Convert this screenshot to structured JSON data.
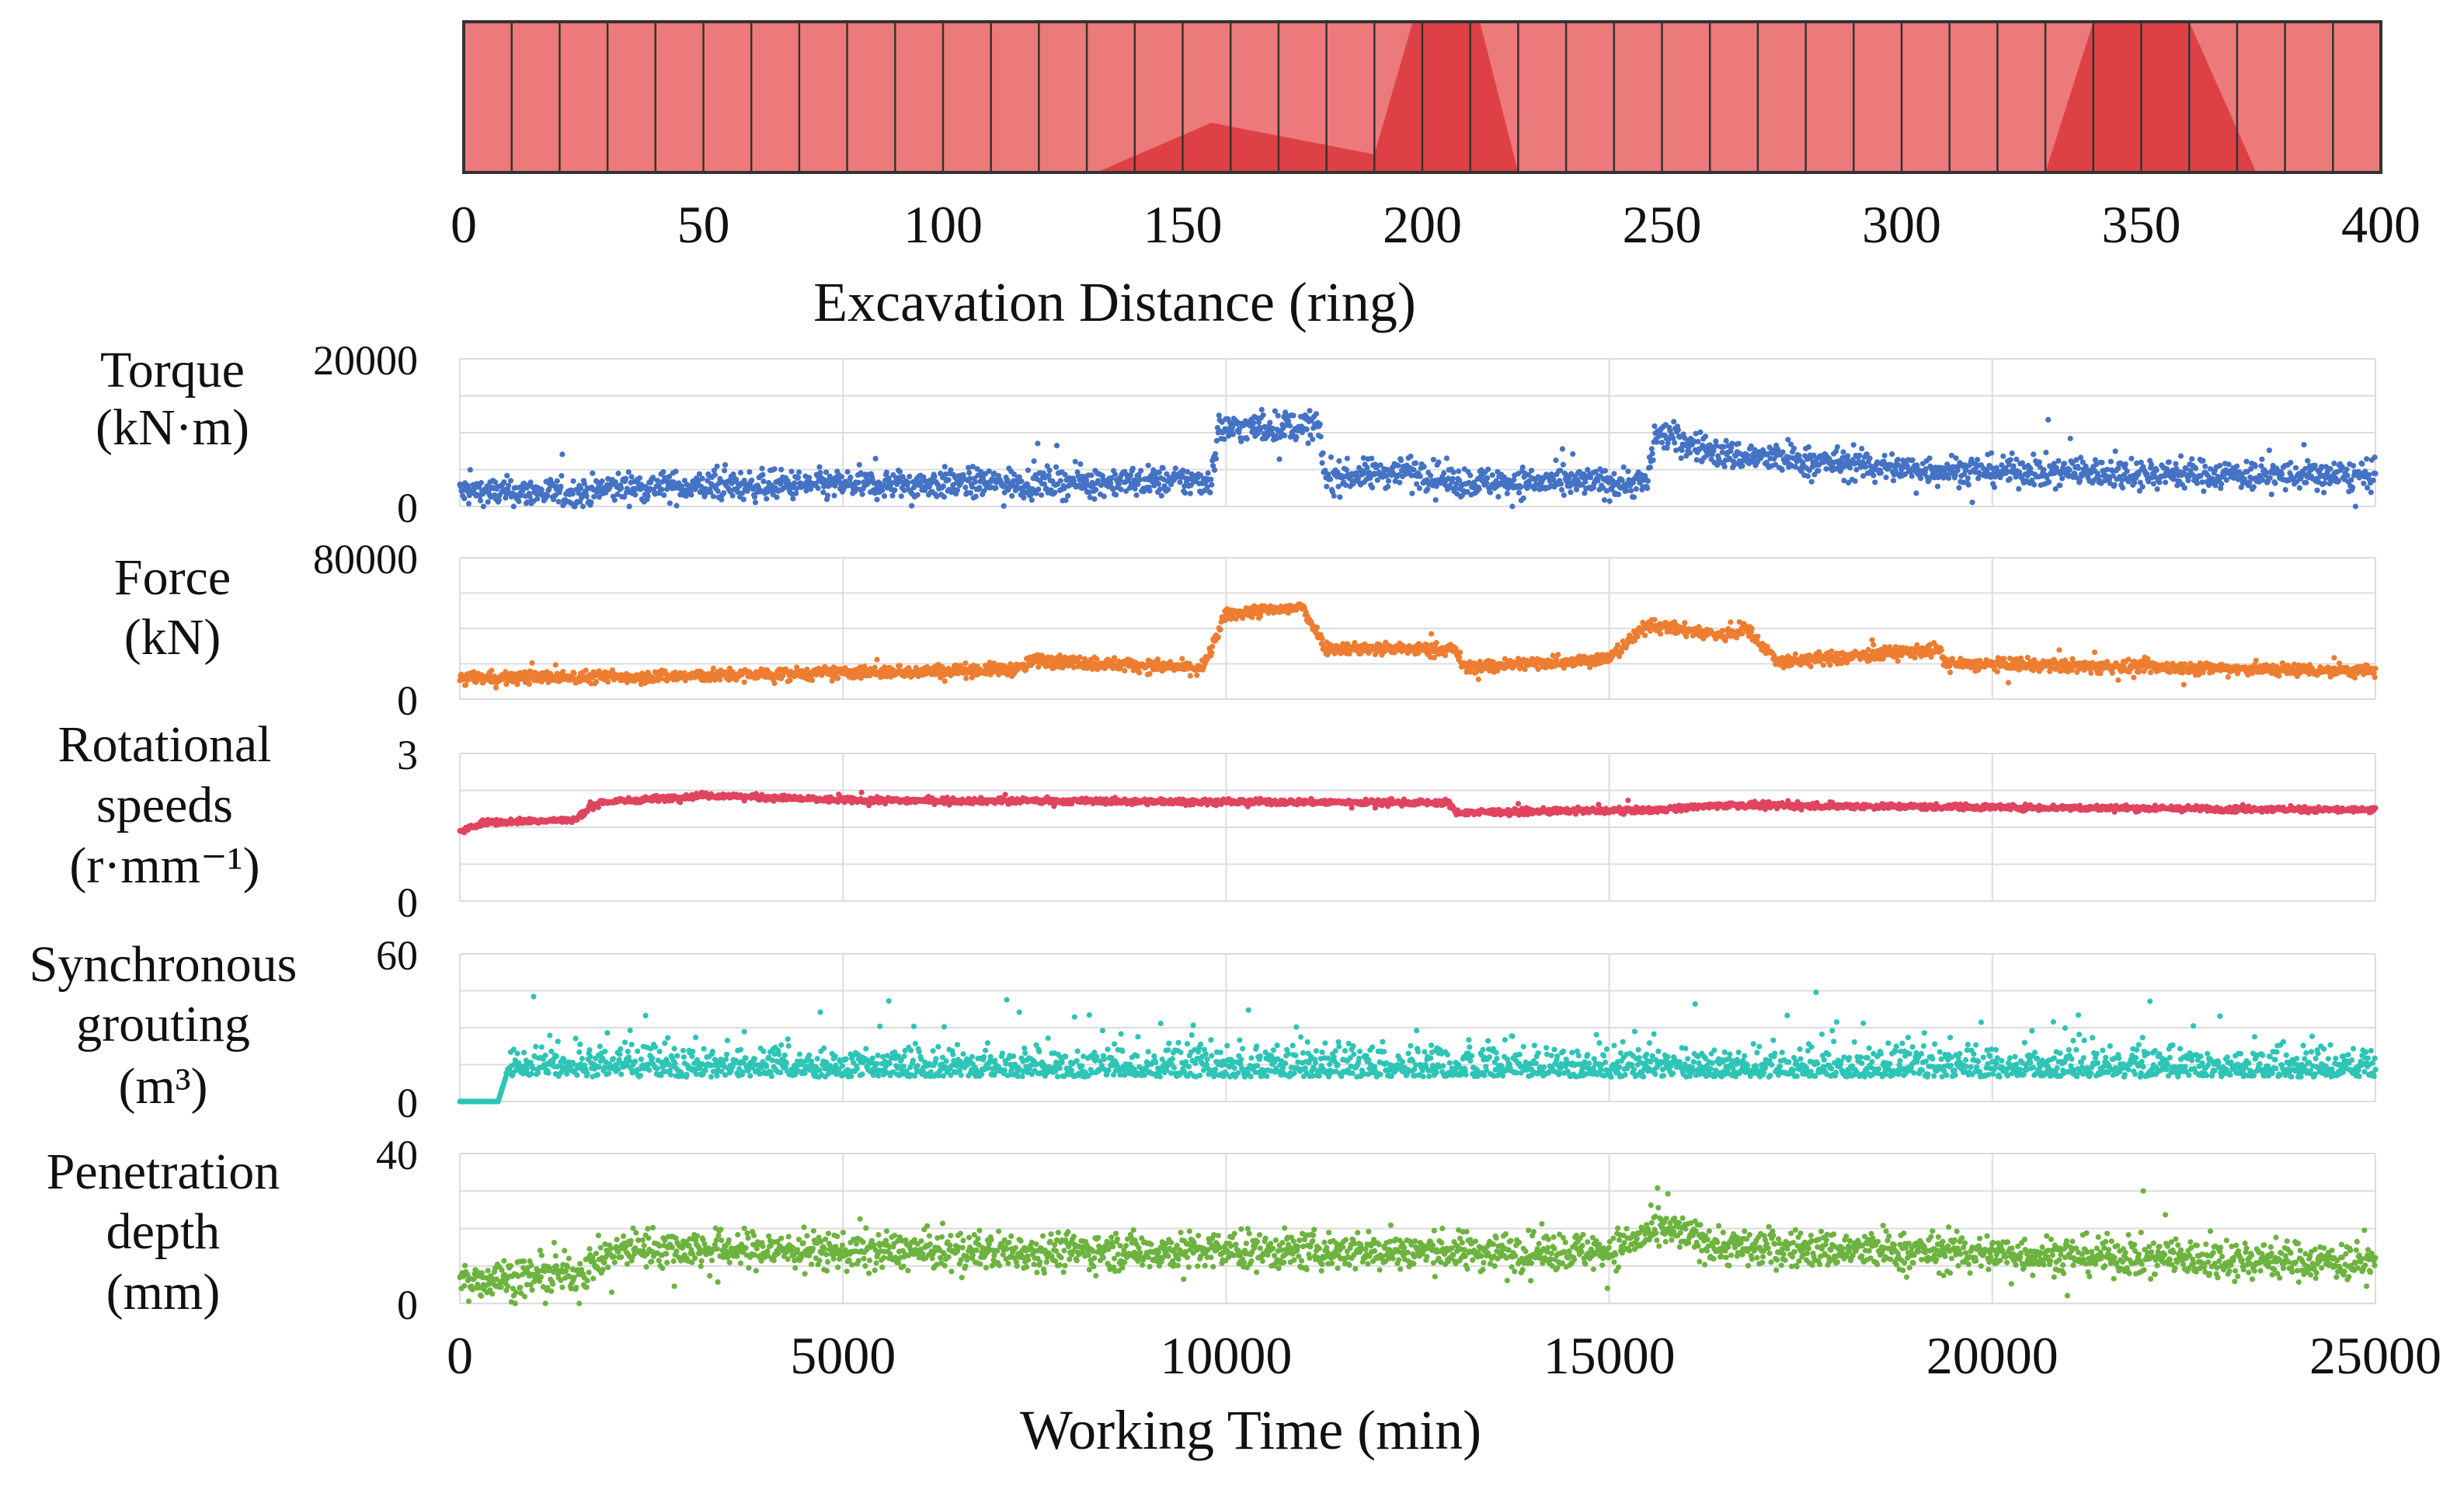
{
  "colors": {
    "strip_fill": "#ec7a7a",
    "strip_dark": "#db3b3f",
    "strip_border": "#333333",
    "grid": "#dcdcdc",
    "torque": "#4472c4",
    "force": "#ed7d31",
    "rotational": "#e0445f",
    "grouting": "#2ec4b6",
    "penetration": "#6db33f"
  },
  "strip": {
    "xlabel": "Excavation Distance (ring)",
    "ticks": [
      "0",
      "50",
      "100",
      "150",
      "200",
      "250",
      "300",
      "350",
      "400"
    ],
    "xlim": [
      0,
      400
    ],
    "segment_boundaries": [
      0,
      10,
      20,
      30,
      40,
      50,
      60,
      70,
      80,
      90,
      100,
      110,
      120,
      130,
      140,
      150,
      160,
      170,
      180,
      190,
      200,
      210,
      220,
      230,
      240,
      250,
      260,
      270,
      280,
      290,
      300,
      310,
      320,
      330,
      340,
      350,
      360,
      370,
      380,
      390,
      400
    ],
    "highlight_zones": [
      {
        "ring_points": [
          [
            132,
            0
          ],
          [
            156,
            0.33
          ],
          [
            190,
            0.12
          ],
          [
            198,
            1
          ],
          [
            212,
            1
          ],
          [
            220,
            0
          ]
        ],
        "color_key": "strip_dark"
      },
      {
        "ring_points": [
          [
            330,
            0
          ],
          [
            340,
            1
          ],
          [
            360,
            1
          ],
          [
            374,
            0
          ]
        ],
        "color_key": "strip_dark"
      }
    ]
  },
  "chart_data": {
    "type": "scatter",
    "xlabel": "Working Time (min)",
    "x_ticks": [
      "0",
      "5000",
      "10000",
      "15000",
      "20000",
      "25000"
    ],
    "xlim": [
      0,
      25000
    ],
    "grid": true,
    "panels": [
      {
        "name_lines": [
          "Torque",
          "(kN·m)"
        ],
        "ymax_label": "20000",
        "ymin_label": "0",
        "ylim": [
          0,
          20000
        ],
        "color_key": "torque",
        "trend": [
          [
            0,
            2000
          ],
          [
            1600,
            1800
          ],
          [
            2000,
            2600
          ],
          [
            9800,
            3500
          ],
          [
            9900,
            10500
          ],
          [
            11200,
            11000
          ],
          [
            11300,
            3800
          ],
          [
            12400,
            5000
          ],
          [
            13000,
            3300
          ],
          [
            15500,
            3200
          ],
          [
            15600,
            10000
          ],
          [
            16500,
            7000
          ],
          [
            19000,
            5000
          ],
          [
            25000,
            4000
          ]
        ],
        "noise": 1400
      },
      {
        "name_lines": [
          "Force",
          "(kN)"
        ],
        "ymax_label": "80000",
        "ymin_label": "0",
        "ylim": [
          0,
          80000
        ],
        "color_key": "force",
        "trend": [
          [
            0,
            12000
          ],
          [
            3000,
            13000
          ],
          [
            7300,
            17000
          ],
          [
            7500,
            22000
          ],
          [
            9700,
            17500
          ],
          [
            10000,
            48000
          ],
          [
            11000,
            52000
          ],
          [
            11300,
            29000
          ],
          [
            13000,
            28000
          ],
          [
            13100,
            18000
          ],
          [
            15000,
            23000
          ],
          [
            15500,
            42000
          ],
          [
            16500,
            36000
          ],
          [
            16800,
            40000
          ],
          [
            17200,
            21000
          ],
          [
            19300,
            28000
          ],
          [
            19400,
            20000
          ],
          [
            25000,
            16000
          ]
        ],
        "noise": 2500
      },
      {
        "name_lines": [
          "Rotational",
          "speeds",
          "(r·mm⁻¹)"
        ],
        "ymax_label": "3",
        "ymin_label": "0",
        "ylim": [
          0,
          3
        ],
        "color_key": "rotational",
        "trend": [
          [
            0,
            1.4
          ],
          [
            300,
            1.6
          ],
          [
            1500,
            1.65
          ],
          [
            1800,
            2.0
          ],
          [
            3200,
            2.15
          ],
          [
            5000,
            2.05
          ],
          [
            12900,
            2.0
          ],
          [
            13000,
            1.8
          ],
          [
            15500,
            1.85
          ],
          [
            16500,
            1.95
          ],
          [
            25000,
            1.85
          ]
        ],
        "noise": 0.04
      },
      {
        "name_lines": [
          "Synchronous",
          "grouting",
          "(m³)"
        ],
        "ymax_label": "60",
        "ymin_label": "0",
        "ylim": [
          0,
          60
        ],
        "color_key": "grouting",
        "trend": [
          [
            0,
            0
          ],
          [
            500,
            0
          ],
          [
            600,
            10
          ],
          [
            25000,
            10
          ]
        ],
        "noise": 8
      },
      {
        "name_lines": [
          "Penetration",
          "depth",
          "(mm)"
        ],
        "ymax_label": "40",
        "ymin_label": "0",
        "ylim": [
          0,
          40
        ],
        "color_key": "penetration",
        "trend": [
          [
            0,
            6
          ],
          [
            1500,
            8
          ],
          [
            2200,
            15
          ],
          [
            5000,
            14
          ],
          [
            9000,
            14
          ],
          [
            15000,
            14
          ],
          [
            15700,
            20
          ],
          [
            16500,
            15
          ],
          [
            25000,
            11
          ]
        ],
        "noise": 3.5
      }
    ]
  }
}
